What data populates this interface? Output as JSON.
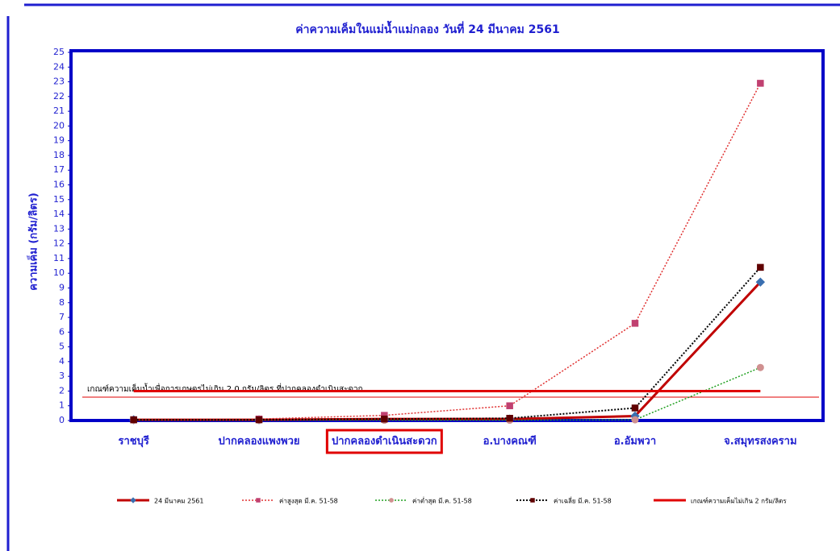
{
  "chart_data": {
    "type": "line",
    "title": "ค่าความเค็มในแม่น้ำแม่กลอง วันที่ 24 มีนาคม 2561",
    "y_label": "ความเค็ม (กรัม/ลิตร)",
    "annotation": "เกณฑ์ความเค็มน้ำเพื่อการเกษตรไม่เกิน  2.0 กรัม/ลิตร  ที่ปากคลองดำเนินสะดวก",
    "categories": [
      "ราชบุรี",
      "ปากคลองแพงพวย",
      "ปากคลองดำเนินสะดวก",
      "อ.บางคณฑี",
      "อ.อัมพวา",
      "จ.สมุทรสงคราม"
    ],
    "highlight_category": 2,
    "ylim": [
      0,
      25
    ],
    "yticks": [
      0,
      1,
      2,
      3,
      4,
      5,
      6,
      7,
      8,
      9,
      10,
      11,
      12,
      13,
      14,
      15,
      16,
      17,
      18,
      19,
      20,
      21,
      22,
      23,
      24,
      25
    ],
    "grid": false,
    "legend": "bottom",
    "series": [
      {
        "name": "24 มีนาคม 2561",
        "color": "#c00000",
        "marker_color": "#3a6fb0",
        "marker": "diamond",
        "dash": "solid",
        "width": 3,
        "values": [
          0.05,
          0.05,
          0.1,
          0.1,
          0.3,
          9.4
        ]
      },
      {
        "name": "ค่าสูงสุด มี.ค. 51-58",
        "color": "#e03030",
        "marker_color": "#c04070",
        "marker": "square",
        "dash": "dotted",
        "width": 1.5,
        "values": [
          0.05,
          0.1,
          0.35,
          1.0,
          6.6,
          22.9
        ]
      },
      {
        "name": "ค่าต่ำสุด มี.ค. 51-58",
        "color": "#20a020",
        "marker_color": "#d09090",
        "marker": "circle",
        "dash": "dotted",
        "width": 1.5,
        "values": [
          0.02,
          0.02,
          0.02,
          0.02,
          0.05,
          3.6
        ]
      },
      {
        "name": "ค่าเฉลี่ย มี.ค. 51-58",
        "color": "#000000",
        "marker_color": "#600000",
        "marker": "square",
        "dash": "dotted",
        "width": 2,
        "values": [
          0.05,
          0.05,
          0.1,
          0.15,
          0.85,
          10.4
        ]
      },
      {
        "name": "เกณฑ์ความเค็มไม่เกิน 2 กรัม/ลิตร",
        "color": "#e00000",
        "marker_color": "#e00000",
        "marker": "none",
        "dash": "solid",
        "width": 3,
        "values": [
          2,
          2,
          2,
          2,
          2,
          2
        ]
      }
    ]
  }
}
